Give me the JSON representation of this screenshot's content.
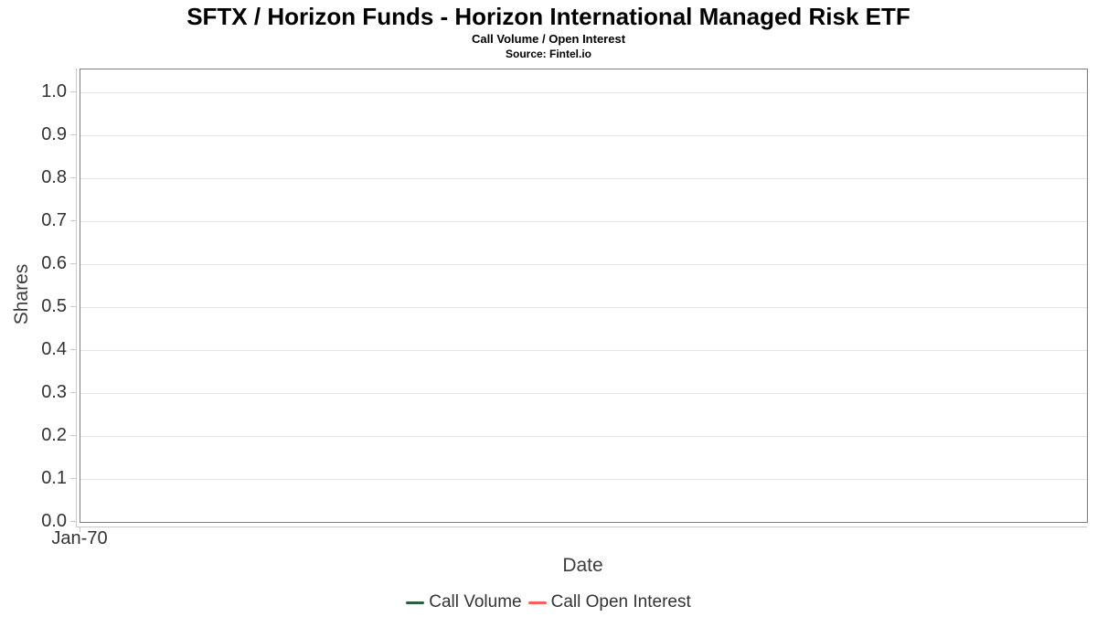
{
  "chart_data": {
    "type": "line",
    "title": "SFTX / Horizon Funds - Horizon International Managed Risk ETF",
    "subtitle": "Call Volume / Open Interest",
    "source": "Source: Fintel.io",
    "xlabel": "Date",
    "ylabel": "Shares",
    "xticklabels": [
      "Jan-70"
    ],
    "yticks": [
      0.0,
      0.1,
      0.2,
      0.3,
      0.4,
      0.5,
      0.6,
      0.7,
      0.8,
      0.9,
      1.0
    ],
    "ylim": [
      0.0,
      1.05
    ],
    "grid": "horizontal-on",
    "legend_position": "bottom-center",
    "plot_area_empty": true,
    "series": [
      {
        "name": "Call Volume",
        "color": "#2b5e3a",
        "x": [],
        "values": []
      },
      {
        "name": "Call Open Interest",
        "color": "#f95d5d",
        "x": [],
        "values": []
      }
    ]
  }
}
